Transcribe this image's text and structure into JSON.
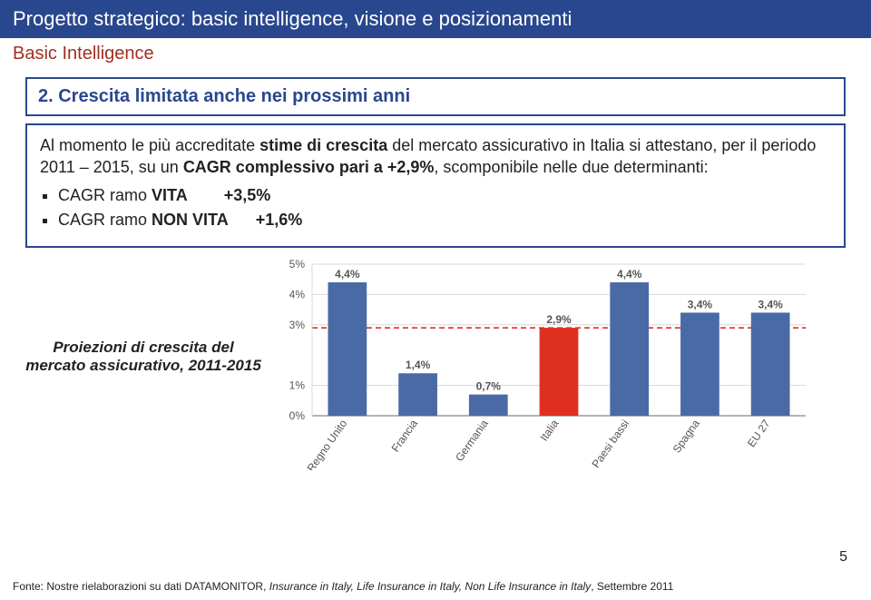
{
  "title": "Progetto strategico: basic intelligence, visione e posizionamenti",
  "subtitle": "Basic Intelligence",
  "callout": "2. Crescita limitata anche nei prossimi anni",
  "para1_pre": "Al momento le più accreditate ",
  "para1_b1": "stime di crescita",
  "para1_mid": " del mercato assicurativo in Italia si attestano, per il periodo 2011 – 2015, su un ",
  "para1_b2": "CAGR complessivo pari a +2,9%",
  "para1_post": ", scomponibile nelle due determinanti:",
  "bullet1_label": "CAGR ramo ",
  "bullet1_bold": "VITA",
  "bullet1_val": "+3,5%",
  "bullet2_label": "CAGR ramo ",
  "bullet2_bold": "NON VITA",
  "bullet2_val": "+1,6%",
  "proj_label": "Proiezioni di crescita del mercato assicurativo, 2011-2015",
  "chart": {
    "categories": [
      "Regno Unito",
      "Francia",
      "Germania",
      "Italia",
      "Paesi bassi",
      "Spagna",
      "EU 27"
    ],
    "values": [
      4.4,
      1.4,
      0.7,
      2.9,
      4.4,
      3.4,
      3.4
    ],
    "value_labels": [
      "4,4%",
      "1,4%",
      "0,7%",
      "2,9%",
      "4,4%",
      "3,4%",
      "3,4%"
    ],
    "bar_colors": [
      "#4a6aa5",
      "#4a6aa5",
      "#4a6aa5",
      "#e03020",
      "#4a6aa5",
      "#4a6aa5",
      "#4a6aa5"
    ],
    "yticks": [
      0,
      1,
      3,
      4,
      5
    ],
    "ytick_labels": [
      "0%",
      "1%",
      "3%",
      "4%",
      "5%"
    ],
    "ylim": [
      0,
      5
    ],
    "grid_color": "#d9d9d9",
    "axis_color": "#888888",
    "text_color": "#555555",
    "bg": "#ffffff",
    "bar_width": 0.55,
    "dashline_value": 2.9,
    "dashline_color": "#e03020"
  },
  "footnote_pre": "Fonte: Nostre rielaborazioni su dati DATAMONITOR, ",
  "footnote_it": "Insurance in Italy, Life Insurance in Italy, Non Life Insurance in Italy",
  "footnote_post": ", Settembre 2011",
  "page_number": "5",
  "colors": {
    "header_bg": "#29478e",
    "subtitle": "#a03020",
    "callout_text": "#29478e"
  }
}
